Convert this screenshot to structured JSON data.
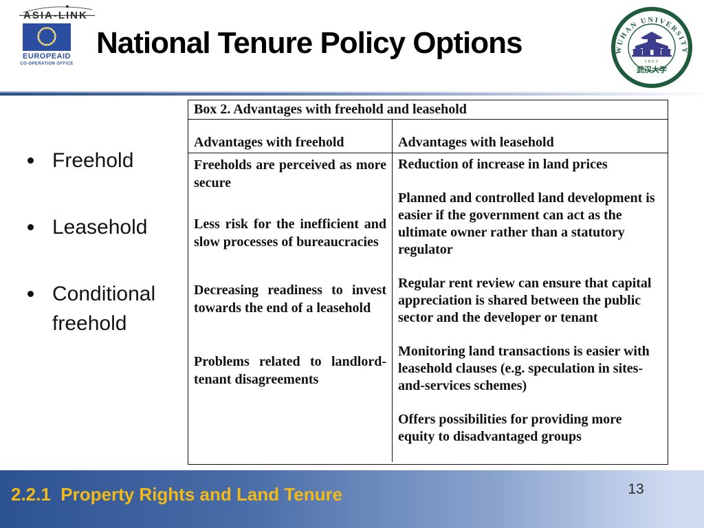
{
  "slide": {
    "title": "National Tenure Policy Options",
    "page_number": "13",
    "footer_label": "2.2.1  Property Rights and Land Tenure"
  },
  "logos": {
    "asialink": {
      "name": "ASIA-LINK",
      "europeaid": "EUROPEAID",
      "office": "CO-OPERATION OFFICE"
    },
    "seal": {
      "top_text": "WUHAN UNIVERSITY",
      "year": "1893",
      "bottom_text": "武汉大学"
    }
  },
  "bullets": [
    "Freehold",
    "Leasehold",
    "Conditional freehold"
  ],
  "table": {
    "caption": "Box 2. Advantages with freehold and leasehold",
    "columns": [
      "Advantages with freehold",
      "Advantages with leasehold"
    ],
    "freehold_items": [
      "Freeholds are perceived as more secure",
      "Less risk for the inefficient and slow processes of bureaucracies",
      "Decreasing readiness to invest towards the end of a leasehold",
      "Problems related to landlord-tenant disagreements"
    ],
    "leasehold_items": [
      "Reduction of increase in land prices",
      "Planned and controlled land development is easier if the government can act as the ultimate owner rather than a statutory regulator",
      "Regular rent review can ensure that capital appreciation is shared between the public sector and the developer or tenant",
      "Monitoring land transactions is easier with leasehold clauses (e.g. speculation in sites-and-services schemes)",
      "Offers possibilities for providing more equity to disadvantaged groups"
    ]
  },
  "colors": {
    "footer_text": "#F2BA18",
    "footer_grad_left": "#2D5291",
    "footer_grad_right": "#CFDAF1",
    "divider_blue": "#2A4F8F",
    "table_border": "#111111",
    "ink": "#111111",
    "eu_blue": "#2B4EA0",
    "star_yellow": "#FFCC00",
    "seal_green": "#1E5C3D",
    "seal_building": "#3D3D8F"
  }
}
